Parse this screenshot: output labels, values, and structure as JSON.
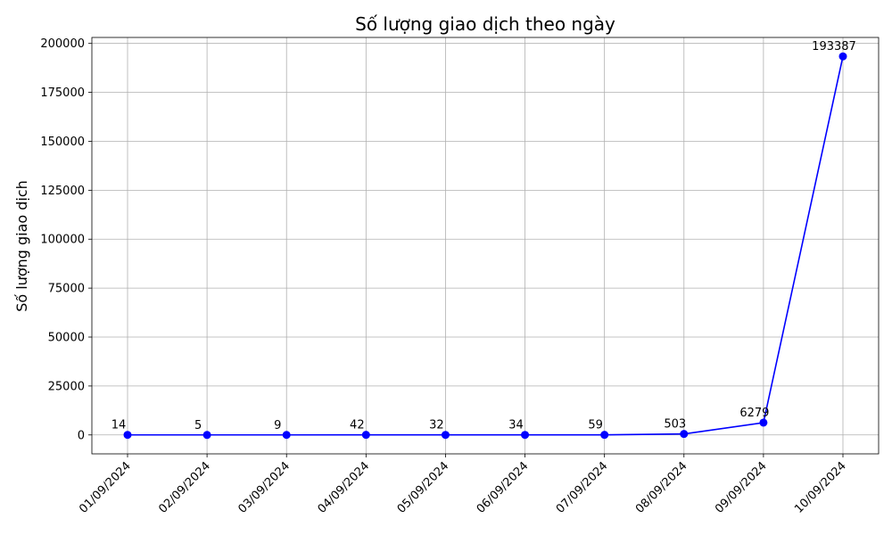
{
  "chart_data": {
    "type": "line",
    "title": "Số lượng giao dịch theo ngày",
    "xlabel": "",
    "ylabel": "Số lượng giao dịch",
    "categories": [
      "01/09/2024",
      "02/09/2024",
      "03/09/2024",
      "04/09/2024",
      "05/09/2024",
      "06/09/2024",
      "07/09/2024",
      "08/09/2024",
      "09/09/2024",
      "10/09/2024"
    ],
    "series": [
      {
        "values": [
          14,
          5,
          9,
          42,
          32,
          34,
          59,
          503,
          6279,
          193387
        ],
        "color": "#0000ff",
        "marker": "circle"
      }
    ],
    "data_labels": [
      "14",
      "5",
      "9",
      "42",
      "32",
      "34",
      "59",
      "503",
      "6279",
      "193387"
    ],
    "ylim": [
      -9669,
      203056
    ],
    "yticks": [
      0,
      25000,
      50000,
      75000,
      100000,
      125000,
      150000,
      175000,
      200000
    ],
    "ytick_labels": [
      "0",
      "25000",
      "50000",
      "75000",
      "100000",
      "125000",
      "150000",
      "175000",
      "200000"
    ],
    "grid": true,
    "legend": "none"
  }
}
